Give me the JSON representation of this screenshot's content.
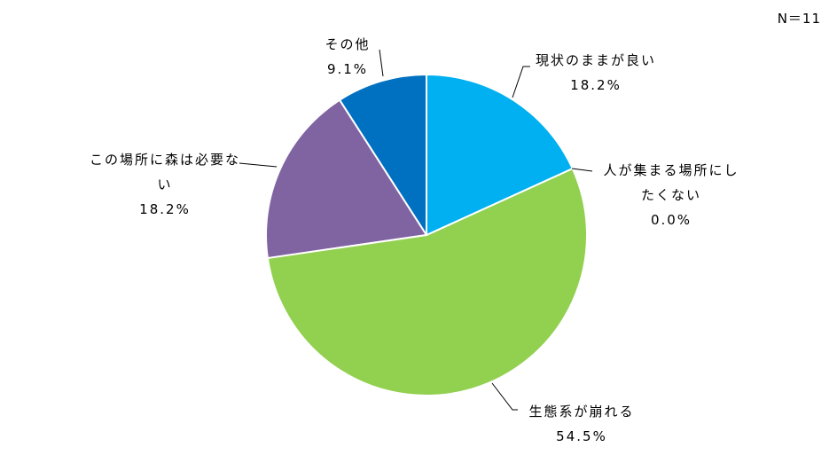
{
  "chart_data": {
    "type": "pie",
    "note": "N＝11",
    "categories": [
      "現状のままが良い",
      "人が集まる場所にしたくない",
      "生態系が崩れる",
      "この場所に森は必要ない",
      "その他"
    ],
    "values": [
      18.2,
      0.0,
      54.5,
      18.2,
      9.1
    ],
    "value_labels": [
      "18.2%",
      "0.0%",
      "54.5%",
      "18.2%",
      "9.1%"
    ],
    "colors": [
      "#00b0f0",
      "#c0504d",
      "#92d050",
      "#8064a2",
      "#0070c0"
    ]
  }
}
